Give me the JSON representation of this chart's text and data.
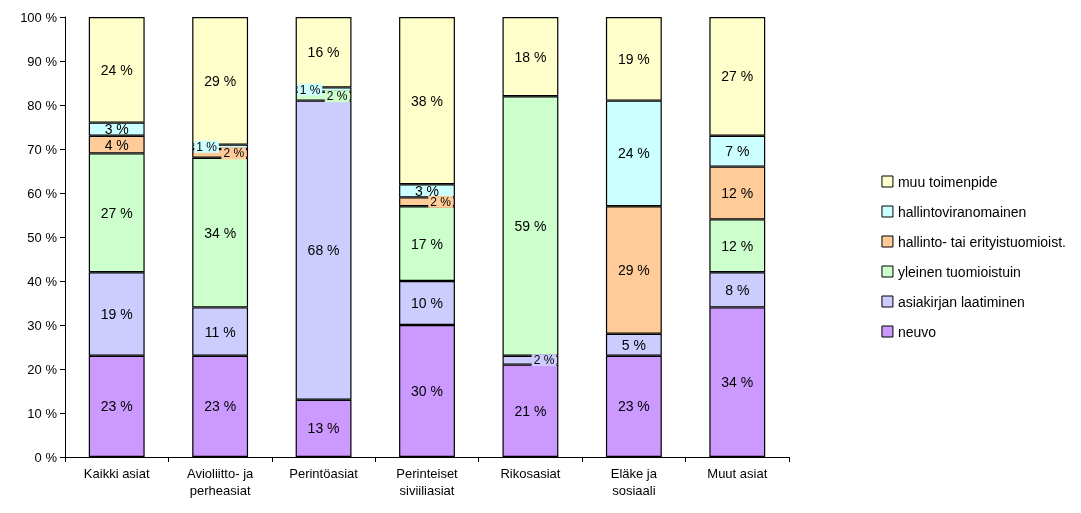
{
  "chart_data": {
    "type": "bar",
    "stacked": true,
    "categories": [
      "Kaikki asiat",
      "Avioliitto- ja\nperheasiat",
      "Perintöasiat",
      "Perinteiset\nsiviiliasiat",
      "Rikosasiat",
      "Eläke ja\nsosiaali",
      "Muut asiat"
    ],
    "series": [
      {
        "name": "neuvo",
        "color": "#cc99ff",
        "values": [
          23,
          23,
          13,
          30,
          21,
          23,
          34
        ],
        "value_labels": [
          "23 %",
          "23 %",
          "13 %",
          "30 %",
          "21 %",
          "23 %",
          "34 %"
        ]
      },
      {
        "name": "asiakirjan laatiminen",
        "color": "#ccccff",
        "values": [
          19,
          11,
          68,
          10,
          2,
          5,
          8
        ],
        "value_labels": [
          "19 %",
          "11 %",
          "68 %",
          "10 %",
          "2 %",
          "5 %",
          "8 %"
        ]
      },
      {
        "name": "yleinen tuomioistuin",
        "color": "#ccffcc",
        "values": [
          27,
          34,
          2,
          17,
          59,
          null,
          12
        ],
        "value_labels": [
          "27 %",
          "34 %",
          "2 %",
          "17 %",
          "59 %",
          null,
          "12 %"
        ]
      },
      {
        "name": "hallinto- tai erityistuomioist.",
        "color": "#ffcc99",
        "values": [
          4,
          2,
          null,
          2,
          null,
          29,
          12
        ],
        "value_labels": [
          "4 %",
          "2 %",
          null,
          "2 %",
          null,
          "29 %",
          "12 %"
        ]
      },
      {
        "name": "hallintoviranomainen",
        "color": "#ccffff",
        "values": [
          3,
          1,
          1,
          3,
          null,
          24,
          7
        ],
        "value_labels": [
          "3 %",
          "1 %",
          "1 %",
          "3 %",
          null,
          "24 %",
          "7 %"
        ]
      },
      {
        "name": "muu toimenpide",
        "color": "#ffffcc",
        "values": [
          24,
          29,
          16,
          38,
          18,
          19,
          27
        ],
        "value_labels": [
          "24 %",
          "29 %",
          "16 %",
          "38 %",
          "18 %",
          "19 %",
          "27 %"
        ]
      }
    ],
    "ylim": [
      0,
      100
    ],
    "yticks": [
      {
        "value": 0,
        "label": "0 %"
      },
      {
        "value": 10,
        "label": "10 %"
      },
      {
        "value": 20,
        "label": "20 %"
      },
      {
        "value": 30,
        "label": "30 %"
      },
      {
        "value": 40,
        "label": "40 %"
      },
      {
        "value": 50,
        "label": "50 %"
      },
      {
        "value": 60,
        "label": "60 %"
      },
      {
        "value": 70,
        "label": "70 %"
      },
      {
        "value": 80,
        "label": "80 %"
      },
      {
        "value": 90,
        "label": "90 %"
      },
      {
        "value": 100,
        "label": "100 %"
      }
    ],
    "grid": false,
    "legend": "right"
  }
}
